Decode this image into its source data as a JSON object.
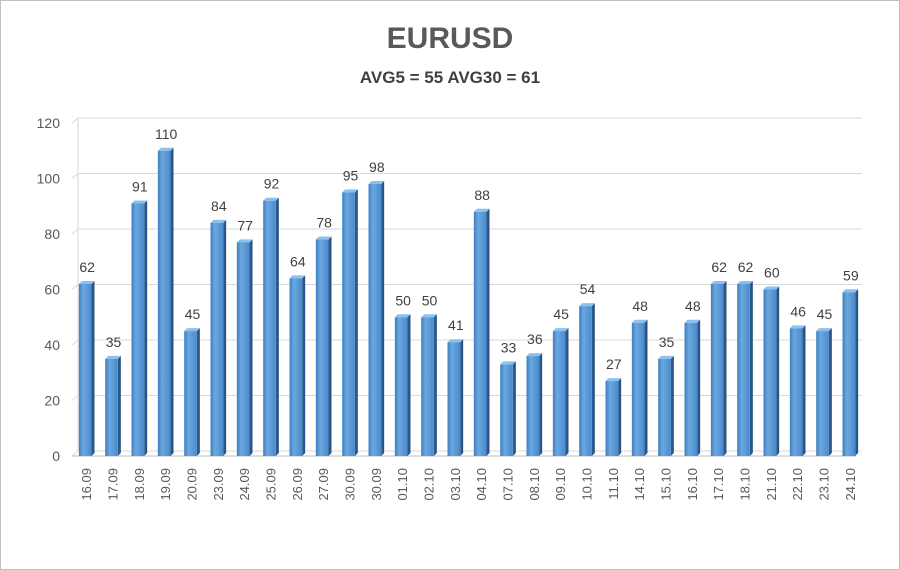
{
  "chart_data": {
    "type": "bar",
    "title": "EURUSD",
    "subtitle": "AVG5 = 55 AVG30 = 61",
    "xlabel": "",
    "ylabel": "",
    "ylim": [
      0,
      120
    ],
    "yticks": [
      0,
      20,
      40,
      60,
      80,
      100,
      120
    ],
    "grid": true,
    "legend": "none",
    "bar_color": "#5b9bd5",
    "categories": [
      "16.09",
      "17.09",
      "18.09",
      "19.09",
      "20.09",
      "23.09",
      "24.09",
      "25.09",
      "26.09",
      "27.09",
      "30.09",
      "30.09",
      "01.10",
      "02.10",
      "03.10",
      "04.10",
      "07.10",
      "08.10",
      "09.10",
      "10.10",
      "11.10",
      "14.10",
      "15.10",
      "16.10",
      "17.10",
      "18.10",
      "21.10",
      "22.10",
      "23.10",
      "24.10"
    ],
    "values": [
      62,
      35,
      91,
      110,
      45,
      84,
      77,
      92,
      64,
      78,
      95,
      98,
      50,
      50,
      41,
      88,
      33,
      36,
      45,
      54,
      27,
      48,
      35,
      48,
      62,
      62,
      60,
      46,
      45,
      59
    ]
  }
}
